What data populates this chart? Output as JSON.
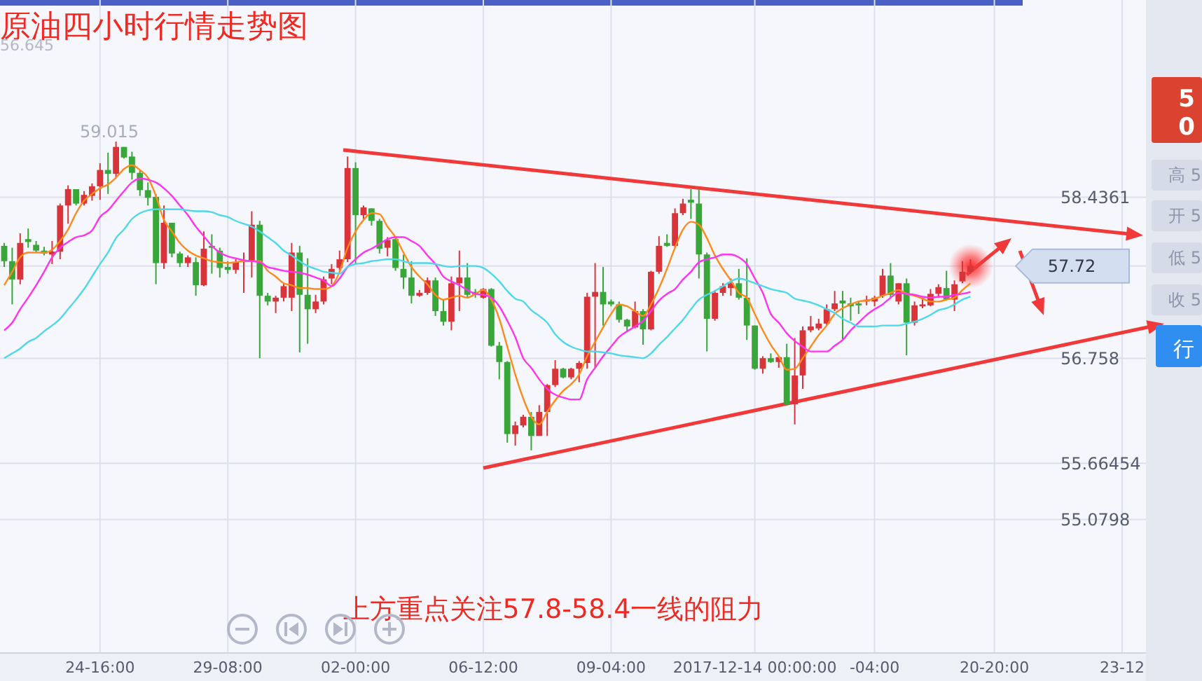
{
  "chart_data": {
    "type": "candlestick",
    "title": "原油四小时行情走势图",
    "categories": [
      null,
      null,
      null,
      null,
      null,
      null,
      null,
      null,
      null,
      null,
      null,
      null,
      "24-16:00",
      null,
      null,
      null,
      null,
      null,
      null,
      null,
      null,
      null,
      null,
      null,
      null,
      null,
      null,
      null,
      "29-08:00",
      null,
      null,
      null,
      null,
      null,
      null,
      null,
      null,
      null,
      null,
      null,
      null,
      null,
      null,
      null,
      "02-00:00",
      null,
      null,
      null,
      null,
      null,
      null,
      null,
      null,
      null,
      null,
      null,
      null,
      null,
      null,
      null,
      "06-12:00",
      null,
      null,
      null,
      null,
      null,
      null,
      null,
      null,
      null,
      null,
      null,
      null,
      null,
      null,
      null,
      "09-04:00",
      null,
      null,
      null,
      null,
      null,
      null,
      null,
      null,
      null,
      null,
      null,
      null,
      null,
      null,
      null,
      null,
      null,
      "2017-12-14 00:00:00",
      null,
      null,
      null,
      null,
      null,
      null,
      null,
      null,
      null,
      null,
      null,
      null,
      null,
      null,
      "-04:00",
      null,
      null,
      null,
      null,
      null,
      null,
      null,
      null,
      null,
      null,
      null,
      null,
      null,
      null,
      "20-20:00",
      null,
      null,
      null,
      null,
      null,
      null,
      null,
      null,
      null,
      null,
      null,
      null,
      null,
      null,
      null,
      "23-12"
    ],
    "ohlc": [
      [
        57.93,
        57.96,
        57.71,
        57.77
      ],
      [
        57.77,
        57.91,
        57.32,
        57.58
      ],
      [
        57.58,
        58.06,
        57.53,
        57.96
      ],
      [
        58.0,
        58.11,
        57.91,
        57.97
      ],
      [
        57.94,
        57.98,
        57.86,
        57.88
      ],
      [
        57.88,
        57.92,
        57.83,
        57.85
      ],
      [
        57.84,
        57.98,
        57.74,
        57.87
      ],
      [
        57.87,
        58.37,
        57.79,
        58.35
      ],
      [
        58.35,
        58.56,
        58.16,
        58.52
      ],
      [
        58.52,
        58.52,
        58.35,
        58.37
      ],
      [
        58.37,
        58.5,
        58.35,
        58.46
      ],
      [
        58.45,
        58.58,
        58.4,
        58.55
      ],
      [
        58.55,
        58.79,
        58.41,
        58.72
      ],
      [
        58.72,
        58.9,
        58.47,
        58.68
      ],
      [
        58.68,
        59.015,
        58.64,
        58.96
      ],
      [
        58.96,
        58.96,
        58.84,
        58.85
      ],
      [
        58.86,
        58.91,
        58.62,
        58.69
      ],
      [
        58.69,
        58.72,
        58.45,
        58.51
      ],
      [
        58.51,
        58.59,
        58.35,
        58.43
      ],
      [
        58.44,
        58.47,
        57.53,
        57.75
      ],
      [
        57.75,
        58.35,
        57.69,
        58.17
      ],
      [
        58.17,
        58.17,
        57.81,
        57.85
      ],
      [
        57.85,
        57.87,
        57.71,
        57.75
      ],
      [
        57.75,
        57.83,
        57.71,
        57.81
      ],
      [
        57.76,
        57.81,
        57.41,
        57.52
      ],
      [
        57.52,
        58.08,
        57.51,
        57.9
      ],
      [
        57.93,
        58.05,
        57.64,
        57.91
      ],
      [
        57.88,
        57.91,
        57.6,
        57.7
      ],
      [
        57.71,
        57.77,
        57.64,
        57.68
      ],
      [
        57.68,
        57.79,
        57.64,
        57.76
      ],
      [
        57.76,
        57.86,
        57.44,
        57.78
      ],
      [
        57.77,
        58.29,
        57.6,
        58.15
      ],
      [
        58.15,
        58.19,
        56.76,
        57.41
      ],
      [
        57.41,
        57.44,
        57.31,
        57.35
      ],
      [
        57.35,
        57.41,
        57.23,
        57.39
      ],
      [
        57.39,
        57.54,
        57.35,
        57.51
      ],
      [
        57.39,
        57.96,
        57.25,
        57.86
      ],
      [
        57.86,
        57.93,
        56.82,
        57.42
      ],
      [
        57.42,
        57.8,
        56.91,
        57.27
      ],
      [
        57.27,
        57.42,
        57.23,
        57.35
      ],
      [
        57.35,
        57.61,
        57.32,
        57.58
      ],
      [
        57.59,
        57.74,
        57.53,
        57.69
      ],
      [
        57.7,
        57.88,
        57.66,
        57.79
      ],
      [
        57.79,
        58.86,
        57.76,
        58.74
      ],
      [
        58.74,
        58.8,
        57.74,
        58.25
      ],
      [
        58.25,
        58.35,
        58.21,
        58.33
      ],
      [
        58.32,
        58.32,
        58.14,
        58.19
      ],
      [
        58.19,
        58.21,
        57.85,
        57.9
      ],
      [
        57.91,
        58.02,
        57.82,
        57.99
      ],
      [
        58.0,
        58.01,
        57.67,
        57.7
      ],
      [
        57.69,
        57.84,
        57.48,
        57.6
      ],
      [
        57.6,
        57.77,
        57.33,
        57.41
      ],
      [
        57.41,
        57.47,
        57.4,
        57.44
      ],
      [
        57.44,
        57.6,
        57.42,
        57.57
      ],
      [
        57.57,
        57.6,
        57.2,
        57.25
      ],
      [
        57.25,
        57.37,
        57.1,
        57.14
      ],
      [
        57.14,
        57.61,
        57.05,
        57.54
      ],
      [
        57.54,
        57.88,
        57.25,
        57.6
      ],
      [
        57.6,
        57.75,
        57.39,
        57.42
      ],
      [
        57.45,
        57.48,
        57.39,
        57.42
      ],
      [
        57.39,
        57.49,
        57.38,
        57.48
      ],
      [
        57.48,
        57.49,
        56.88,
        56.89
      ],
      [
        56.89,
        56.93,
        56.54,
        56.72
      ],
      [
        56.72,
        56.73,
        55.88,
        55.97
      ],
      [
        55.97,
        56.1,
        55.85,
        56.06
      ],
      [
        56.06,
        56.17,
        56.04,
        56.15
      ],
      [
        56.15,
        56.2,
        55.8,
        55.95
      ],
      [
        55.95,
        56.27,
        55.95,
        56.2
      ],
      [
        56.2,
        56.49,
        55.95,
        56.48
      ],
      [
        56.48,
        56.74,
        56.46,
        56.65
      ],
      [
        56.65,
        56.66,
        56.55,
        56.56
      ],
      [
        56.56,
        56.66,
        56.54,
        56.65
      ],
      [
        56.65,
        56.73,
        56.51,
        56.71
      ],
      [
        56.71,
        57.44,
        56.65,
        57.4
      ],
      [
        57.4,
        57.75,
        56.66,
        57.45
      ],
      [
        57.45,
        57.71,
        57.1,
        57.32
      ],
      [
        57.35,
        57.37,
        57.3,
        57.32
      ],
      [
        57.32,
        57.35,
        57.13,
        57.16
      ],
      [
        57.16,
        57.17,
        57.03,
        57.09
      ],
      [
        57.08,
        57.35,
        57.07,
        57.25
      ],
      [
        57.25,
        57.27,
        56.9,
        57.06
      ],
      [
        57.06,
        57.67,
        57.05,
        57.66
      ],
      [
        57.66,
        58.03,
        57.64,
        57.93
      ],
      [
        57.96,
        58.05,
        57.92,
        57.93
      ],
      [
        57.93,
        58.32,
        57.91,
        58.27
      ],
      [
        58.27,
        58.42,
        58.25,
        58.37
      ],
      [
        58.41,
        58.52,
        58.21,
        58.38
      ],
      [
        58.37,
        58.52,
        57.59,
        57.84
      ],
      [
        57.84,
        57.86,
        56.83,
        57.17
      ],
      [
        57.17,
        57.47,
        57.15,
        57.44
      ],
      [
        57.44,
        57.54,
        57.41,
        57.51
      ],
      [
        57.49,
        57.59,
        57.41,
        57.54
      ],
      [
        57.54,
        57.69,
        57.37,
        57.39
      ],
      [
        57.39,
        57.8,
        56.95,
        57.1
      ],
      [
        57.1,
        57.1,
        56.64,
        56.65
      ],
      [
        56.65,
        56.78,
        56.6,
        56.76
      ],
      [
        56.76,
        56.81,
        56.71,
        56.72
      ],
      [
        56.72,
        56.78,
        56.66,
        56.77
      ],
      [
        56.77,
        56.91,
        56.27,
        56.28
      ],
      [
        56.28,
        56.97,
        56.07,
        56.58
      ],
      [
        56.58,
        57.09,
        56.44,
        57.05
      ],
      [
        57.05,
        57.2,
        57.03,
        57.09
      ],
      [
        57.07,
        57.17,
        57.05,
        57.12
      ],
      [
        57.12,
        57.32,
        57.1,
        57.27
      ],
      [
        57.27,
        57.46,
        57.25,
        57.33
      ],
      [
        57.36,
        57.46,
        56.95,
        57.33
      ],
      [
        57.33,
        57.39,
        57.15,
        57.3
      ],
      [
        57.33,
        57.36,
        57.22,
        57.31
      ],
      [
        57.35,
        57.41,
        57.31,
        57.37
      ],
      [
        57.35,
        57.41,
        57.3,
        57.39
      ],
      [
        57.41,
        57.69,
        57.39,
        57.62
      ],
      [
        57.62,
        57.75,
        57.38,
        57.42
      ],
      [
        57.35,
        57.54,
        57.32,
        57.54
      ],
      [
        57.54,
        57.59,
        56.79,
        57.13
      ],
      [
        57.13,
        57.35,
        57.1,
        57.31
      ],
      [
        57.3,
        57.39,
        57.28,
        57.32
      ],
      [
        57.31,
        57.48,
        57.3,
        57.43
      ],
      [
        57.43,
        57.53,
        57.39,
        57.5
      ],
      [
        57.49,
        57.67,
        57.36,
        57.37
      ],
      [
        57.37,
        57.57,
        57.25,
        57.53
      ],
      [
        57.56,
        57.77,
        57.54,
        57.66
      ],
      [
        57.66,
        57.79,
        57.64,
        57.72
      ],
      null,
      null,
      null,
      null,
      null,
      null,
      null,
      null,
      null,
      null,
      null,
      null,
      null,
      null,
      null,
      null,
      null,
      null,
      null
    ],
    "series": [
      {
        "type": "line",
        "color": "#ff8a1c",
        "values": [
          57.52,
          57.66,
          57.81,
          57.86,
          57.86,
          57.86,
          57.89,
          57.98,
          58.1,
          58.27,
          58.4,
          58.47,
          58.53,
          58.57,
          58.64,
          58.73,
          58.77,
          58.72,
          58.64,
          58.45,
          58.2,
          58.08,
          57.96,
          57.88,
          57.83,
          57.8,
          57.77,
          57.76,
          57.75,
          57.76,
          57.77,
          57.77,
          57.77,
          57.67,
          57.61,
          57.54,
          57.52,
          57.49,
          57.49,
          57.48,
          57.48,
          57.51,
          57.66,
          57.91,
          58.08,
          58.2,
          58.27,
          58.26,
          58.13,
          58.02,
          57.86,
          57.71,
          57.61,
          57.53,
          57.42,
          57.37,
          57.39,
          57.41,
          57.39,
          57.43,
          57.47,
          57.37,
          57.17,
          56.88,
          56.59,
          56.34,
          56.15,
          56.07,
          56.2,
          56.32,
          56.42,
          56.49,
          56.59,
          56.78,
          56.93,
          57.08,
          57.22,
          57.32,
          57.3,
          57.25,
          57.2,
          57.32,
          57.49,
          57.69,
          57.91,
          58.1,
          58.18,
          58.15,
          58.01,
          57.83,
          57.69,
          57.57,
          57.44,
          57.39,
          57.22,
          57.05,
          56.9,
          56.78,
          56.64,
          56.65,
          56.76,
          56.88,
          57.0,
          57.1,
          57.22,
          57.28,
          57.32,
          57.35,
          57.36,
          57.38,
          57.41,
          57.44,
          57.47,
          57.43,
          57.41,
          57.38,
          57.35,
          57.35,
          57.37,
          57.39,
          57.47,
          57.54,
          null,
          null,
          null,
          null,
          null,
          null,
          null,
          null,
          null,
          null,
          null,
          null,
          null,
          null,
          null,
          null,
          null,
          null,
          null
        ]
      },
      {
        "type": "line",
        "color": "#ff33f0",
        "values": [
          57.05,
          57.13,
          57.27,
          57.39,
          57.52,
          57.66,
          57.81,
          57.91,
          57.97,
          58.02,
          58.04,
          58.09,
          58.23,
          58.3,
          58.4,
          58.5,
          58.59,
          58.63,
          58.62,
          58.59,
          58.53,
          58.45,
          58.35,
          58.25,
          58.13,
          58.03,
          57.93,
          57.86,
          57.82,
          57.8,
          57.78,
          57.77,
          57.76,
          57.71,
          57.69,
          57.67,
          57.66,
          57.65,
          57.63,
          57.6,
          57.57,
          57.51,
          57.59,
          57.71,
          57.79,
          57.86,
          57.9,
          57.95,
          58.0,
          58.02,
          58.02,
          57.98,
          57.93,
          57.83,
          57.74,
          57.61,
          57.56,
          57.52,
          57.47,
          57.43,
          57.42,
          57.39,
          57.3,
          57.15,
          56.98,
          56.76,
          56.66,
          56.54,
          56.44,
          56.38,
          56.35,
          56.33,
          56.33,
          56.54,
          56.66,
          56.78,
          56.88,
          56.98,
          57.04,
          57.09,
          57.15,
          57.25,
          57.36,
          57.43,
          57.48,
          57.58,
          57.66,
          57.76,
          57.79,
          57.81,
          57.84,
          57.84,
          57.81,
          57.74,
          57.59,
          57.44,
          57.22,
          57.13,
          57.02,
          56.94,
          56.88,
          56.83,
          56.83,
          56.83,
          56.89,
          56.95,
          57.05,
          57.13,
          57.21,
          57.27,
          57.32,
          57.39,
          57.44,
          57.43,
          57.42,
          57.4,
          57.39,
          57.4,
          57.4,
          57.42,
          57.43,
          57.45,
          null,
          null,
          null,
          null,
          null,
          null,
          null,
          null,
          null,
          null,
          null,
          null,
          null,
          null,
          null,
          null,
          null,
          null,
          null
        ]
      },
      {
        "type": "line",
        "color": "#4fd8ea",
        "values": [
          56.76,
          56.81,
          56.86,
          56.93,
          56.97,
          57.04,
          57.1,
          57.17,
          57.27,
          57.37,
          57.48,
          57.61,
          57.74,
          57.86,
          58.01,
          58.1,
          58.21,
          58.27,
          58.3,
          58.31,
          58.31,
          58.31,
          58.31,
          58.3,
          58.29,
          58.29,
          58.28,
          58.25,
          58.23,
          58.19,
          58.16,
          58.13,
          58.08,
          58.02,
          57.96,
          57.88,
          57.83,
          57.77,
          57.72,
          57.69,
          57.66,
          57.65,
          57.64,
          57.71,
          57.74,
          57.75,
          57.77,
          57.78,
          57.79,
          57.79,
          57.77,
          57.75,
          57.75,
          57.75,
          57.74,
          57.72,
          57.71,
          57.72,
          57.72,
          57.72,
          57.7,
          57.64,
          57.56,
          57.46,
          57.38,
          57.35,
          57.26,
          57.2,
          57.13,
          57.01,
          56.93,
          56.88,
          56.85,
          56.83,
          56.83,
          56.82,
          56.81,
          56.79,
          56.78,
          56.77,
          56.76,
          56.81,
          56.9,
          56.98,
          57.07,
          57.16,
          57.27,
          57.37,
          57.42,
          57.46,
          57.51,
          57.56,
          57.59,
          57.57,
          57.54,
          57.51,
          57.48,
          57.46,
          57.44,
          57.38,
          57.36,
          57.34,
          57.31,
          57.27,
          57.23,
          57.17,
          57.13,
          57.09,
          57.09,
          57.09,
          57.1,
          57.1,
          57.1,
          57.12,
          57.14,
          57.17,
          57.21,
          57.26,
          57.28,
          57.32,
          57.37,
          57.4,
          null,
          null,
          null,
          null,
          null,
          null,
          null,
          null,
          null,
          null,
          null,
          null,
          null,
          null,
          null,
          null,
          null,
          null,
          null
        ]
      }
    ],
    "ylim": [
      53.69,
      60.49
    ],
    "yticks": [
      55.0798,
      55.66454,
      56.758,
      58.4361
    ],
    "ref_lines": [
      {
        "axis": "y",
        "value": 57.72,
        "label": "57.72"
      }
    ],
    "annotations": [
      "59.015",
      "56.645",
      "上方重点关注57.8-58.4一线的阻力",
      "5",
      "0",
      "高 5",
      "开 5",
      "低 5",
      "收 5",
      "行"
    ],
    "grid": true
  }
}
